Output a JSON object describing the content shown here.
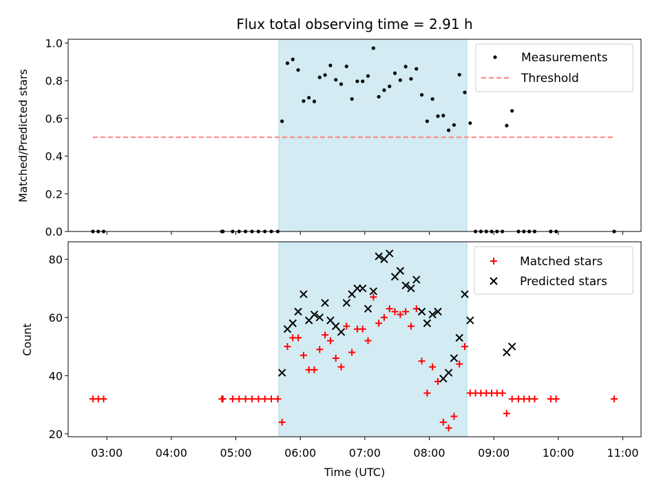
{
  "chart_data": [
    {
      "type": "scatter",
      "title": "Flux total observing time = 2.91 h",
      "ylabel": "Matched/Predicted stars",
      "xlabel": "",
      "ylim": [
        0,
        1.02
      ],
      "yticks": [
        0.0,
        0.2,
        0.4,
        0.6,
        0.8,
        1.0
      ],
      "ytick_labels": [
        "0.0",
        "0.2",
        "0.4",
        "0.6",
        "0.8",
        "1.0"
      ],
      "legend": "top-right",
      "shaded_span": {
        "start": "05:40",
        "end": "08:35",
        "color": "#d3ebf2"
      },
      "threshold": {
        "name": "Threshold",
        "y": 0.5,
        "x_start": "02:47",
        "x_end": "10:52",
        "color": "#ff7f7f"
      },
      "series": [
        {
          "name": "Measurements",
          "color": "#000000",
          "points": [
            [
              "02:47",
              0
            ],
            [
              "02:52",
              0
            ],
            [
              "02:57",
              0
            ],
            [
              "04:47",
              0
            ],
            [
              "04:48",
              0
            ],
            [
              "04:57",
              0
            ],
            [
              "05:03",
              0
            ],
            [
              "05:09",
              0
            ],
            [
              "05:15",
              0
            ],
            [
              "05:21",
              0
            ],
            [
              "05:27",
              0
            ],
            [
              "05:33",
              0
            ],
            [
              "05:39",
              0
            ],
            [
              "05:43",
              0.585
            ],
            [
              "05:48",
              0.893
            ],
            [
              "05:53",
              0.913
            ],
            [
              "05:58",
              0.857
            ],
            [
              "06:03",
              0.692
            ],
            [
              "06:08",
              0.71
            ],
            [
              "06:13",
              0.69
            ],
            [
              "06:18",
              0.818
            ],
            [
              "06:23",
              0.83
            ],
            [
              "06:28",
              0.881
            ],
            [
              "06:33",
              0.805
            ],
            [
              "06:38",
              0.782
            ],
            [
              "06:43",
              0.876
            ],
            [
              "06:48",
              0.703
            ],
            [
              "06:53",
              0.797
            ],
            [
              "06:58",
              0.797
            ],
            [
              "07:03",
              0.825
            ],
            [
              "07:08",
              0.973
            ],
            [
              "07:13",
              0.715
            ],
            [
              "07:18",
              0.75
            ],
            [
              "07:23",
              0.77
            ],
            [
              "07:28",
              0.84
            ],
            [
              "07:33",
              0.803
            ],
            [
              "07:38",
              0.875
            ],
            [
              "07:43",
              0.81
            ],
            [
              "07:48",
              0.863
            ],
            [
              "07:53",
              0.725
            ],
            [
              "07:58",
              0.585
            ],
            [
              "08:03",
              0.703
            ],
            [
              "08:08",
              0.612
            ],
            [
              "08:13",
              0.615
            ],
            [
              "08:18",
              0.537
            ],
            [
              "08:23",
              0.565
            ],
            [
              "08:28",
              0.832
            ],
            [
              "08:33",
              0.738
            ],
            [
              "08:38",
              0.575
            ],
            [
              "08:43",
              0
            ],
            [
              "08:48",
              0
            ],
            [
              "08:53",
              0
            ],
            [
              "08:58",
              0
            ],
            [
              "09:03",
              0
            ],
            [
              "09:08",
              0
            ],
            [
              "09:12",
              0.562
            ],
            [
              "09:17",
              0.64
            ],
            [
              "09:23",
              0
            ],
            [
              "09:28",
              0
            ],
            [
              "09:33",
              0
            ],
            [
              "09:38",
              0
            ],
            [
              "09:53",
              0
            ],
            [
              "09:58",
              0
            ],
            [
              "10:52",
              0
            ]
          ]
        }
      ]
    },
    {
      "type": "scatter",
      "title": "",
      "ylabel": "Count",
      "xlabel": "Time (UTC)",
      "ylim": [
        19,
        86
      ],
      "yticks": [
        20,
        40,
        60,
        80
      ],
      "ytick_labels": [
        "20",
        "40",
        "60",
        "80"
      ],
      "xlim": [
        "02:24",
        "11:17"
      ],
      "xticks": [
        "03:00",
        "04:00",
        "05:00",
        "06:00",
        "07:00",
        "08:00",
        "09:00",
        "10:00",
        "11:00"
      ],
      "legend": "top-right",
      "shaded_span": {
        "start": "05:40",
        "end": "08:35",
        "color": "#d3ebf2"
      },
      "series": [
        {
          "name": "Matched stars",
          "marker": "plus",
          "color": "#ff0000",
          "points": [
            [
              "02:47",
              32
            ],
            [
              "02:52",
              32
            ],
            [
              "02:57",
              32
            ],
            [
              "04:47",
              32
            ],
            [
              "04:48",
              32
            ],
            [
              "04:57",
              32
            ],
            [
              "05:03",
              32
            ],
            [
              "05:09",
              32
            ],
            [
              "05:15",
              32
            ],
            [
              "05:21",
              32
            ],
            [
              "05:27",
              32
            ],
            [
              "05:33",
              32
            ],
            [
              "05:39",
              32
            ],
            [
              "05:43",
              24
            ],
            [
              "05:48",
              50
            ],
            [
              "05:53",
              53
            ],
            [
              "05:58",
              53
            ],
            [
              "06:03",
              47
            ],
            [
              "06:08",
              42
            ],
            [
              "06:13",
              42
            ],
            [
              "06:18",
              49
            ],
            [
              "06:23",
              54
            ],
            [
              "06:28",
              52
            ],
            [
              "06:33",
              46
            ],
            [
              "06:38",
              43
            ],
            [
              "06:43",
              57
            ],
            [
              "06:48",
              48
            ],
            [
              "06:53",
              56
            ],
            [
              "06:58",
              56
            ],
            [
              "07:03",
              52
            ],
            [
              "07:08",
              67
            ],
            [
              "07:13",
              58
            ],
            [
              "07:18",
              60
            ],
            [
              "07:23",
              63
            ],
            [
              "07:28",
              62
            ],
            [
              "07:33",
              61
            ],
            [
              "07:38",
              62
            ],
            [
              "07:43",
              57
            ],
            [
              "07:48",
              63
            ],
            [
              "07:53",
              45
            ],
            [
              "07:58",
              34
            ],
            [
              "08:03",
              43
            ],
            [
              "08:08",
              38
            ],
            [
              "08:13",
              24
            ],
            [
              "08:18",
              22
            ],
            [
              "08:23",
              26
            ],
            [
              "08:28",
              44
            ],
            [
              "08:33",
              50
            ],
            [
              "08:38",
              34
            ],
            [
              "08:43",
              34
            ],
            [
              "08:48",
              34
            ],
            [
              "08:53",
              34
            ],
            [
              "08:58",
              34
            ],
            [
              "09:03",
              34
            ],
            [
              "09:08",
              34
            ],
            [
              "09:12",
              27
            ],
            [
              "09:17",
              32
            ],
            [
              "09:23",
              32
            ],
            [
              "09:28",
              32
            ],
            [
              "09:33",
              32
            ],
            [
              "09:38",
              32
            ],
            [
              "09:53",
              32
            ],
            [
              "09:58",
              32
            ],
            [
              "10:52",
              32
            ]
          ]
        },
        {
          "name": "Predicted stars",
          "marker": "x",
          "color": "#000000",
          "points": [
            [
              "05:43",
              41
            ],
            [
              "05:48",
              56
            ],
            [
              "05:53",
              58
            ],
            [
              "05:58",
              62
            ],
            [
              "06:03",
              68
            ],
            [
              "06:08",
              59
            ],
            [
              "06:13",
              61
            ],
            [
              "06:18",
              60
            ],
            [
              "06:23",
              65
            ],
            [
              "06:28",
              59
            ],
            [
              "06:33",
              57
            ],
            [
              "06:38",
              55
            ],
            [
              "06:43",
              65
            ],
            [
              "06:48",
              68
            ],
            [
              "06:53",
              70
            ],
            [
              "06:58",
              70
            ],
            [
              "07:03",
              63
            ],
            [
              "07:08",
              69
            ],
            [
              "07:13",
              81
            ],
            [
              "07:18",
              80
            ],
            [
              "07:23",
              82
            ],
            [
              "07:28",
              74
            ],
            [
              "07:33",
              76
            ],
            [
              "07:38",
              71
            ],
            [
              "07:43",
              70
            ],
            [
              "07:48",
              73
            ],
            [
              "07:53",
              62
            ],
            [
              "07:58",
              58
            ],
            [
              "08:03",
              61
            ],
            [
              "08:08",
              62
            ],
            [
              "08:13",
              39
            ],
            [
              "08:18",
              41
            ],
            [
              "08:23",
              46
            ],
            [
              "08:28",
              53
            ],
            [
              "08:33",
              68
            ],
            [
              "08:38",
              59
            ],
            [
              "09:12",
              48
            ],
            [
              "09:17",
              50
            ]
          ]
        }
      ]
    }
  ]
}
